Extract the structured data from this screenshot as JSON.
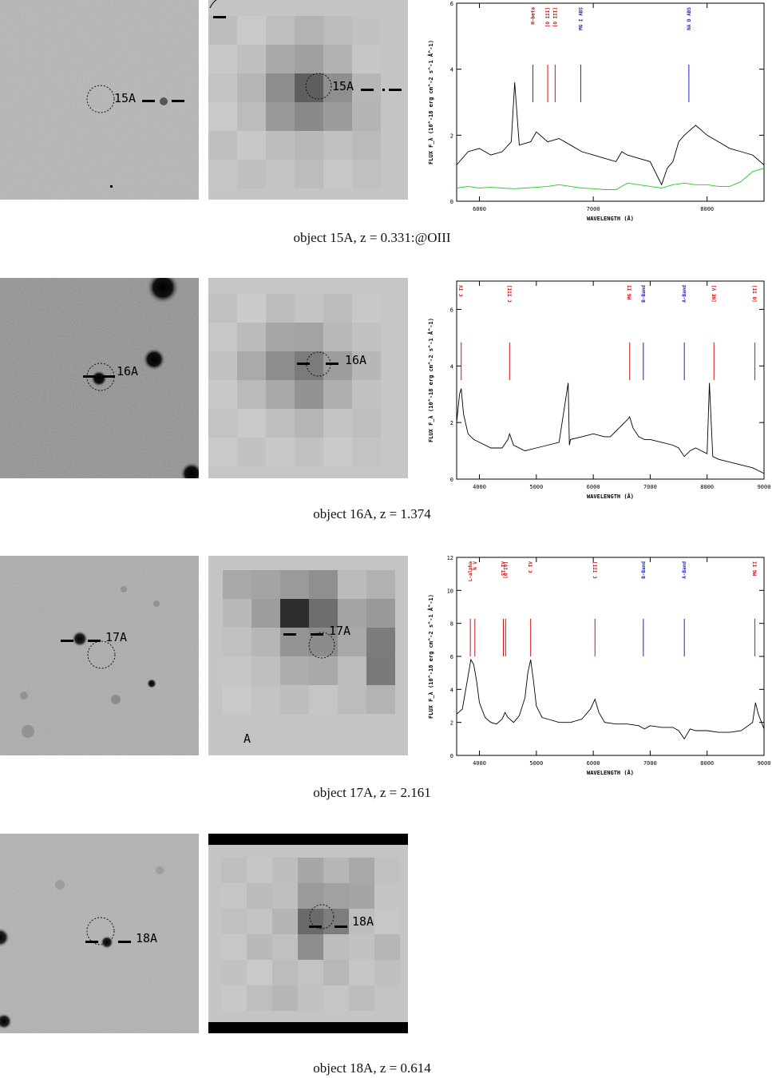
{
  "rows": [
    {
      "id": "15A",
      "label": "15A",
      "caption": "object 15A, z = 0.331:@OIII"
    },
    {
      "id": "16A",
      "label": "16A",
      "caption": "object 16A, z = 1.374"
    },
    {
      "id": "17A",
      "label": "17A",
      "caption": "object 17A, z = 2.161"
    },
    {
      "id": "18A",
      "label": "18A",
      "caption": "object 18A, z = 0.614"
    }
  ],
  "extra_labels": {
    "row3_xray_mark": "A"
  },
  "chart_data": [
    {
      "type": "line",
      "object": "15A",
      "xlabel": "WAVELENGTH (Å)",
      "ylabel": "FLUX F_λ (10^-18 erg cm^-2 s^-1 Å^-1)",
      "xlim": [
        5800,
        8500
      ],
      "ylim": [
        0,
        6
      ],
      "xticks": [
        6000,
        7000,
        8000
      ],
      "yticks": [
        0,
        2,
        4,
        6
      ],
      "lines": [
        {
          "label": "H-beta",
          "x": 6470,
          "color": "#8b1a1a"
        },
        {
          "label": "[O III]",
          "x": 6600,
          "color": "#d01010"
        },
        {
          "label": "[O III]",
          "x": 6665,
          "color": "#d01010"
        },
        {
          "label": "MG I ABS",
          "x": 6890,
          "color": "#1a1ae0"
        },
        {
          "label": "NA D ABS",
          "x": 7840,
          "color": "#1a1ae0"
        }
      ],
      "series": [
        {
          "color": "#000000",
          "x": [
            5800,
            5900,
            6000,
            6100,
            6200,
            6280,
            6310,
            6350,
            6450,
            6500,
            6600,
            6700,
            6800,
            6900,
            7000,
            7100,
            7200,
            7250,
            7300,
            7400,
            7500,
            7600,
            7650,
            7700,
            7750,
            7800,
            7900,
            8000,
            8100,
            8200,
            8300,
            8400,
            8500
          ],
          "y": [
            1.1,
            1.5,
            1.6,
            1.4,
            1.5,
            1.8,
            3.6,
            1.7,
            1.8,
            2.1,
            1.8,
            1.9,
            1.7,
            1.5,
            1.4,
            1.3,
            1.2,
            1.5,
            1.4,
            1.3,
            1.2,
            0.5,
            1.0,
            1.2,
            1.8,
            2.0,
            2.3,
            2.0,
            1.8,
            1.6,
            1.5,
            1.4,
            1.1
          ]
        },
        {
          "color": "#22cc22",
          "x": [
            5800,
            5900,
            6000,
            6100,
            6200,
            6300,
            6400,
            6500,
            6600,
            6700,
            6800,
            6900,
            7000,
            7100,
            7200,
            7300,
            7400,
            7500,
            7600,
            7700,
            7800,
            7900,
            8000,
            8100,
            8200,
            8300,
            8400,
            8500
          ],
          "y": [
            0.4,
            0.45,
            0.4,
            0.42,
            0.4,
            0.38,
            0.4,
            0.42,
            0.45,
            0.5,
            0.45,
            0.4,
            0.38,
            0.35,
            0.35,
            0.55,
            0.5,
            0.45,
            0.4,
            0.5,
            0.55,
            0.5,
            0.5,
            0.45,
            0.45,
            0.6,
            0.9,
            1.0
          ]
        }
      ]
    },
    {
      "type": "line",
      "object": "16A",
      "xlabel": "WAVELENGTH (Å)",
      "ylabel": "FLUX F_λ (10^-18 erg cm^-2 s^-1 Å^-1)",
      "xlim": [
        3600,
        9000
      ],
      "ylim": [
        0,
        7
      ],
      "xticks": [
        4000,
        5000,
        6000,
        7000,
        8000,
        9000
      ],
      "yticks": [
        0,
        2,
        4,
        6
      ],
      "lines": [
        {
          "label": "C IV",
          "x": 3680,
          "color": "#d01010"
        },
        {
          "label": "C III]",
          "x": 4530,
          "color": "#d01010"
        },
        {
          "label": "MG II",
          "x": 6640,
          "color": "#d01010"
        },
        {
          "label": "B-Band",
          "x": 6880,
          "color": "#1a1ae0"
        },
        {
          "label": "A-Band",
          "x": 7600,
          "color": "#1a1ae0"
        },
        {
          "label": "[NE V]",
          "x": 8120,
          "color": "#d01010"
        },
        {
          "label": "[O II]",
          "x": 8840,
          "color": "#d01010"
        }
      ],
      "series": [
        {
          "color": "#000000",
          "x": [
            3600,
            3650,
            3680,
            3720,
            3800,
            3900,
            4000,
            4200,
            4400,
            4500,
            4530,
            4600,
            4800,
            5000,
            5200,
            5400,
            5560,
            5580,
            5600,
            5800,
            6000,
            6200,
            6300,
            6400,
            6500,
            6600,
            6640,
            6700,
            6800,
            6900,
            7000,
            7200,
            7400,
            7500,
            7600,
            7700,
            7800,
            8000,
            8040,
            8100,
            8200,
            8400,
            8600,
            8800,
            9000
          ],
          "y": [
            2.0,
            3.0,
            3.2,
            2.3,
            1.6,
            1.4,
            1.3,
            1.1,
            1.1,
            1.4,
            1.6,
            1.2,
            1.0,
            1.1,
            1.2,
            1.3,
            3.4,
            1.2,
            1.4,
            1.5,
            1.6,
            1.5,
            1.5,
            1.7,
            1.9,
            2.1,
            2.2,
            1.8,
            1.5,
            1.4,
            1.4,
            1.3,
            1.2,
            1.1,
            0.8,
            1.0,
            1.1,
            0.9,
            3.4,
            0.8,
            0.7,
            0.6,
            0.5,
            0.4,
            0.2
          ]
        }
      ]
    },
    {
      "type": "line",
      "object": "17A",
      "xlabel": "WAVELENGTH (Å)",
      "ylabel": "FLUX F_λ (10^-18 erg cm^-2 s^-1 Å^-1)",
      "xlim": [
        3600,
        9000
      ],
      "ylim": [
        0,
        12
      ],
      "xticks": [
        4000,
        5000,
        6000,
        7000,
        8000,
        9000
      ],
      "yticks": [
        0,
        2,
        4,
        6,
        8,
        10,
        12
      ],
      "lines": [
        {
          "label": "L-alpha",
          "x": 3840,
          "color": "#d01010"
        },
        {
          "label": "N V",
          "x": 3920,
          "color": "#d01010"
        },
        {
          "label": "SI IV",
          "x": 4420,
          "color": "#d01010"
        },
        {
          "label": "[O IV]",
          "x": 4460,
          "color": "#d01010"
        },
        {
          "label": "C IV",
          "x": 4900,
          "color": "#d01010"
        },
        {
          "label": "C III]",
          "x": 6030,
          "color": "#d01010"
        },
        {
          "label": "B-Band",
          "x": 6880,
          "color": "#1a1ae0"
        },
        {
          "label": "A-Band",
          "x": 7600,
          "color": "#1a1ae0"
        },
        {
          "label": "MG II",
          "x": 8840,
          "color": "#d01010"
        }
      ],
      "series": [
        {
          "color": "#000000",
          "x": [
            3600,
            3700,
            3800,
            3850,
            3900,
            3950,
            4000,
            4100,
            4200,
            4300,
            4400,
            4450,
            4500,
            4600,
            4700,
            4800,
            4850,
            4900,
            4950,
            5000,
            5100,
            5200,
            5400,
            5600,
            5800,
            5950,
            6030,
            6100,
            6200,
            6400,
            6600,
            6800,
            6900,
            7000,
            7200,
            7400,
            7500,
            7600,
            7700,
            7800,
            8000,
            8200,
            8400,
            8600,
            8800,
            8850,
            8900,
            9000
          ],
          "y": [
            2.5,
            2.8,
            4.8,
            5.8,
            5.5,
            4.5,
            3.2,
            2.3,
            2.0,
            1.9,
            2.2,
            2.6,
            2.3,
            2.0,
            2.4,
            3.5,
            5.0,
            5.8,
            4.5,
            3.0,
            2.3,
            2.2,
            2.0,
            2.0,
            2.2,
            2.8,
            3.4,
            2.6,
            2.0,
            1.9,
            1.9,
            1.8,
            1.6,
            1.8,
            1.7,
            1.7,
            1.5,
            1.0,
            1.6,
            1.5,
            1.5,
            1.4,
            1.4,
            1.5,
            2.0,
            3.2,
            2.5,
            1.6
          ]
        }
      ]
    }
  ]
}
